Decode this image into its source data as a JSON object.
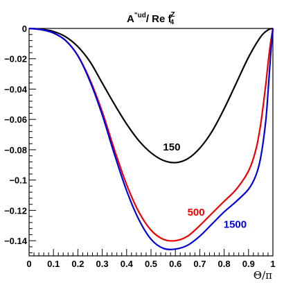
{
  "chart_data": {
    "type": "line",
    "title": {
      "prefix": "A",
      "sup1": "\"ud",
      "middle": "/ Re f",
      "sup2": "Z",
      "sub2": "4"
    },
    "xlabel": "Θ/π",
    "ylabel": "",
    "xlim": [
      0,
      1
    ],
    "ylim": [
      -0.15,
      0
    ],
    "x_ticks": [
      {
        "value": 0,
        "label": "0"
      },
      {
        "value": 0.1,
        "label": "0.1"
      },
      {
        "value": 0.2,
        "label": "0.2"
      },
      {
        "value": 0.3,
        "label": "0.3"
      },
      {
        "value": 0.4,
        "label": "0.4"
      },
      {
        "value": 0.5,
        "label": "0.5"
      },
      {
        "value": 0.6,
        "label": "0.6"
      },
      {
        "value": 0.7,
        "label": "0.7"
      },
      {
        "value": 0.8,
        "label": "0.8"
      },
      {
        "value": 0.9,
        "label": "0.9"
      },
      {
        "value": 1,
        "label": "1"
      }
    ],
    "y_ticks": [
      {
        "value": 0,
        "label": "0"
      },
      {
        "value": -0.02,
        "label": "−0.02"
      },
      {
        "value": -0.04,
        "label": "−0.04"
      },
      {
        "value": -0.06,
        "label": "−0.06"
      },
      {
        "value": -0.08,
        "label": "−0.08"
      },
      {
        "value": -0.1,
        "label": "−0.1"
      },
      {
        "value": -0.12,
        "label": "−0.12"
      },
      {
        "value": -0.14,
        "label": "−0.14"
      }
    ],
    "series": [
      {
        "name": "150",
        "color": "#000000",
        "x": [
          0,
          0.05,
          0.1,
          0.15,
          0.2,
          0.25,
          0.3,
          0.35,
          0.4,
          0.45,
          0.5,
          0.55,
          0.6,
          0.65,
          0.7,
          0.75,
          0.8,
          0.85,
          0.9,
          0.95,
          0.98,
          1.0
        ],
        "y": [
          0,
          -0.0005,
          -0.002,
          -0.0055,
          -0.012,
          -0.022,
          -0.036,
          -0.05,
          -0.063,
          -0.074,
          -0.082,
          -0.087,
          -0.0885,
          -0.086,
          -0.079,
          -0.068,
          -0.053,
          -0.036,
          -0.019,
          -0.0055,
          -0.001,
          0
        ]
      },
      {
        "name": "500",
        "color": "#ee0000",
        "x": [
          0,
          0.05,
          0.1,
          0.15,
          0.2,
          0.25,
          0.3,
          0.35,
          0.4,
          0.45,
          0.5,
          0.55,
          0.6,
          0.65,
          0.7,
          0.75,
          0.8,
          0.85,
          0.9,
          0.93,
          0.95,
          0.97,
          0.98,
          0.99,
          1.0
        ],
        "y": [
          0,
          -0.0008,
          -0.003,
          -0.008,
          -0.018,
          -0.034,
          -0.055,
          -0.08,
          -0.103,
          -0.121,
          -0.133,
          -0.139,
          -0.14,
          -0.137,
          -0.13,
          -0.122,
          -0.114,
          -0.106,
          -0.094,
          -0.08,
          -0.063,
          -0.038,
          -0.023,
          -0.01,
          0
        ]
      },
      {
        "name": "1500",
        "color": "#0000dd",
        "x": [
          0,
          0.05,
          0.1,
          0.15,
          0.2,
          0.25,
          0.3,
          0.35,
          0.4,
          0.45,
          0.5,
          0.55,
          0.6,
          0.65,
          0.7,
          0.75,
          0.8,
          0.85,
          0.9,
          0.93,
          0.95,
          0.97,
          0.98,
          0.99,
          1.0
        ],
        "y": [
          0,
          -0.0008,
          -0.003,
          -0.008,
          -0.018,
          -0.035,
          -0.057,
          -0.083,
          -0.107,
          -0.126,
          -0.139,
          -0.145,
          -0.1455,
          -0.143,
          -0.137,
          -0.129,
          -0.121,
          -0.114,
          -0.106,
          -0.097,
          -0.085,
          -0.062,
          -0.042,
          -0.019,
          0
        ]
      }
    ],
    "annotations": [
      {
        "text": "150",
        "x": 0.585,
        "y": -0.0805,
        "color": "#000000"
      },
      {
        "text": "500",
        "x": 0.685,
        "y": -0.1235,
        "color": "#ee0000"
      },
      {
        "text": "1500",
        "x": 0.845,
        "y": -0.1315,
        "color": "#0000dd"
      }
    ],
    "grid": false,
    "legend": "none"
  }
}
